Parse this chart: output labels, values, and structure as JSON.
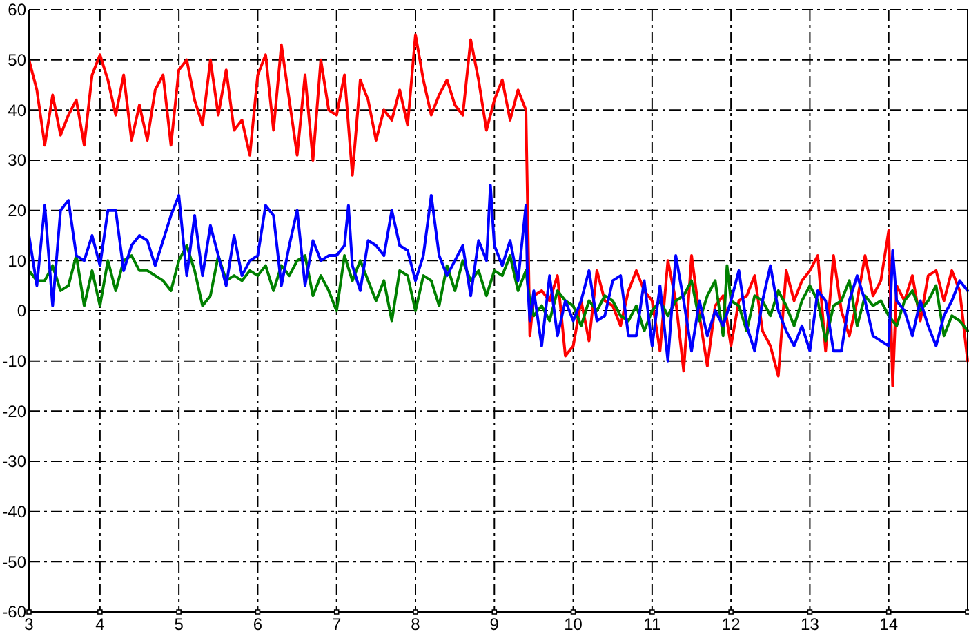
{
  "chart_data": {
    "type": "line",
    "grid": true,
    "xlim": [
      3.1,
      15
    ],
    "ylim": [
      -60,
      60
    ],
    "xticks": [
      {
        "value": 3.1,
        "label": "3"
      },
      4,
      5,
      6,
      7,
      8,
      9,
      10,
      11,
      12,
      13,
      14,
      {
        "value": 15,
        "label": null
      }
    ],
    "yticks": [
      -60,
      -50,
      -40,
      -30,
      -20,
      -10,
      0,
      10,
      20,
      30,
      40,
      50,
      60
    ],
    "series": [
      {
        "color": "#ff0000",
        "x": [
          3.1,
          3.2,
          3.3,
          3.4,
          3.5,
          3.6,
          3.7,
          3.8,
          3.9,
          4.0,
          4.1,
          4.2,
          4.3,
          4.4,
          4.5,
          4.6,
          4.7,
          4.8,
          4.9,
          5.0,
          5.1,
          5.2,
          5.3,
          5.4,
          5.5,
          5.6,
          5.7,
          5.8,
          5.9,
          6.0,
          6.1,
          6.2,
          6.3,
          6.4,
          6.5,
          6.6,
          6.7,
          6.8,
          6.9,
          7.0,
          7.1,
          7.2,
          7.3,
          7.4,
          7.5,
          7.6,
          7.7,
          7.8,
          7.9,
          8.0,
          8.1,
          8.2,
          8.3,
          8.4,
          8.5,
          8.6,
          8.7,
          8.8,
          8.9,
          9.0,
          9.1,
          9.2,
          9.3,
          9.4,
          9.45,
          9.5,
          9.6,
          9.7,
          9.8,
          9.9,
          10.0,
          10.1,
          10.2,
          10.3,
          10.4,
          10.5,
          10.6,
          10.7,
          10.8,
          10.9,
          11.0,
          11.1,
          11.2,
          11.3,
          11.4,
          11.5,
          11.6,
          11.7,
          11.8,
          11.9,
          12.0,
          12.1,
          12.2,
          12.3,
          12.4,
          12.5,
          12.6,
          12.7,
          12.8,
          12.9,
          13.0,
          13.1,
          13.2,
          13.3,
          13.4,
          13.5,
          13.6,
          13.7,
          13.8,
          13.9,
          14.0,
          14.05,
          14.1,
          14.2,
          14.3,
          14.4,
          14.5,
          14.6,
          14.7,
          14.8,
          14.9,
          15.0
        ],
        "values": [
          50,
          44,
          33,
          43,
          35,
          39,
          42,
          33,
          47,
          51,
          46,
          39,
          47,
          34,
          41,
          34,
          44,
          47,
          33,
          48,
          50,
          42,
          37,
          50,
          39,
          48,
          36,
          38,
          31,
          47,
          51,
          36,
          53,
          42,
          31,
          47,
          30,
          50,
          40,
          39,
          47,
          27,
          46,
          42,
          34,
          40,
          38,
          44,
          37,
          55,
          46,
          39,
          43,
          46,
          41,
          39,
          54,
          46,
          36,
          42,
          46,
          38,
          44,
          40,
          -5,
          3,
          4,
          2,
          7,
          -9,
          -7,
          2,
          -6,
          8,
          2,
          1,
          -3,
          4,
          8,
          4,
          2,
          -8,
          10,
          2,
          -12,
          11,
          -1,
          -11,
          1,
          3,
          -7,
          2,
          3,
          7,
          -4,
          -7,
          -13,
          8,
          2,
          6,
          8,
          11,
          -8,
          11,
          0,
          -5,
          2,
          11,
          3,
          6,
          16,
          -15,
          5,
          2,
          7,
          -2,
          7,
          8,
          2,
          8,
          4,
          -10
        ]
      },
      {
        "color": "#008000",
        "x": [
          3.1,
          3.2,
          3.3,
          3.4,
          3.5,
          3.6,
          3.7,
          3.8,
          3.9,
          4.0,
          4.1,
          4.2,
          4.3,
          4.4,
          4.5,
          4.6,
          4.7,
          4.8,
          4.9,
          5.0,
          5.1,
          5.2,
          5.3,
          5.4,
          5.5,
          5.6,
          5.7,
          5.8,
          5.9,
          6.0,
          6.1,
          6.2,
          6.3,
          6.4,
          6.5,
          6.6,
          6.7,
          6.8,
          6.9,
          7.0,
          7.1,
          7.2,
          7.3,
          7.4,
          7.5,
          7.6,
          7.7,
          7.8,
          7.9,
          8.0,
          8.1,
          8.2,
          8.3,
          8.4,
          8.5,
          8.6,
          8.7,
          8.8,
          8.9,
          9.0,
          9.1,
          9.2,
          9.3,
          9.4,
          9.45,
          9.5,
          9.6,
          9.7,
          9.8,
          9.9,
          10.0,
          10.1,
          10.2,
          10.3,
          10.4,
          10.5,
          10.6,
          10.7,
          10.8,
          10.9,
          11.0,
          11.1,
          11.2,
          11.3,
          11.4,
          11.5,
          11.6,
          11.7,
          11.8,
          11.9,
          11.95,
          12.0,
          12.1,
          12.2,
          12.3,
          12.4,
          12.5,
          12.6,
          12.7,
          12.8,
          12.9,
          13.0,
          13.1,
          13.2,
          13.3,
          13.4,
          13.5,
          13.6,
          13.7,
          13.8,
          13.9,
          14.0,
          14.1,
          14.2,
          14.3,
          14.4,
          14.5,
          14.6,
          14.7,
          14.8,
          14.9,
          15.0
        ],
        "values": [
          8,
          6,
          6,
          9,
          4,
          5,
          11,
          1,
          8,
          1,
          10,
          4,
          10,
          11,
          8,
          8,
          7,
          6,
          4,
          10,
          13,
          8,
          1,
          3,
          11,
          6,
          7,
          6,
          8,
          7,
          9,
          4,
          9,
          7,
          10,
          11,
          3,
          7,
          4,
          0,
          11,
          6,
          10,
          6,
          2,
          6,
          -2,
          8,
          7,
          0,
          7,
          6,
          1,
          9,
          4,
          10,
          6,
          8,
          3,
          8,
          7,
          11,
          4,
          8,
          2,
          -1,
          1,
          -2,
          4,
          2,
          1,
          -3,
          2,
          0,
          3,
          2,
          -1,
          -2,
          1,
          -4,
          0,
          2,
          -1,
          2,
          3,
          6,
          -2,
          3,
          6,
          -5,
          9,
          2,
          1,
          -4,
          3,
          2,
          -1,
          4,
          1,
          -3,
          2,
          5,
          2,
          -6,
          1,
          2,
          6,
          -3,
          3,
          1,
          2,
          -1,
          -3,
          2,
          4,
          0,
          2,
          5,
          -5,
          -1,
          -2,
          -4
        ]
      },
      {
        "color": "#0000ff",
        "x": [
          3.1,
          3.2,
          3.3,
          3.4,
          3.5,
          3.6,
          3.7,
          3.8,
          3.9,
          4.0,
          4.1,
          4.2,
          4.3,
          4.4,
          4.5,
          4.6,
          4.7,
          4.8,
          4.9,
          5.0,
          5.1,
          5.2,
          5.3,
          5.4,
          5.5,
          5.6,
          5.7,
          5.8,
          5.9,
          6.0,
          6.1,
          6.2,
          6.3,
          6.4,
          6.5,
          6.6,
          6.7,
          6.8,
          6.9,
          7.0,
          7.1,
          7.15,
          7.2,
          7.3,
          7.4,
          7.5,
          7.6,
          7.7,
          7.8,
          7.9,
          8.0,
          8.1,
          8.2,
          8.3,
          8.4,
          8.5,
          8.6,
          8.7,
          8.8,
          8.9,
          8.95,
          9.0,
          9.1,
          9.2,
          9.3,
          9.4,
          9.42,
          9.45,
          9.5,
          9.6,
          9.7,
          9.8,
          9.9,
          10.0,
          10.1,
          10.2,
          10.3,
          10.4,
          10.5,
          10.6,
          10.7,
          10.8,
          10.9,
          11.0,
          11.1,
          11.2,
          11.3,
          11.4,
          11.5,
          11.6,
          11.7,
          11.8,
          11.9,
          12.0,
          12.1,
          12.2,
          12.3,
          12.4,
          12.5,
          12.6,
          12.7,
          12.8,
          12.9,
          13.0,
          13.1,
          13.2,
          13.3,
          13.4,
          13.5,
          13.6,
          13.7,
          13.8,
          13.9,
          14.0,
          14.05,
          14.1,
          14.2,
          14.3,
          14.4,
          14.5,
          14.6,
          14.7,
          14.8,
          14.9,
          15.0
        ],
        "values": [
          15,
          5,
          21,
          1,
          20,
          22,
          11,
          10,
          15,
          9,
          20,
          20,
          8,
          13,
          15,
          14,
          9,
          14,
          19,
          23,
          7,
          19,
          7,
          17,
          11,
          5,
          15,
          7,
          10,
          11,
          21,
          19,
          5,
          13,
          20,
          5,
          14,
          10,
          11,
          11,
          13,
          21,
          9,
          4,
          14,
          13,
          11,
          20,
          13,
          12,
          6,
          11,
          23,
          11,
          7,
          10,
          13,
          3,
          14,
          10,
          25,
          13,
          9,
          14,
          6,
          21,
          6,
          -2,
          4,
          -7,
          7,
          -5,
          2,
          -2,
          2,
          8,
          -2,
          -1,
          6,
          7,
          -5,
          -5,
          6,
          -7,
          5,
          -10,
          11,
          2,
          -8,
          2,
          -5,
          0,
          -3,
          2,
          8,
          -3,
          -8,
          2,
          9,
          0,
          -4,
          -7,
          -3,
          -8,
          4,
          2,
          -8,
          -8,
          2,
          7,
          2,
          -5,
          -6,
          -7,
          12,
          2,
          0,
          -5,
          2,
          -3,
          -7,
          -1,
          2,
          6,
          4
        ]
      }
    ]
  }
}
